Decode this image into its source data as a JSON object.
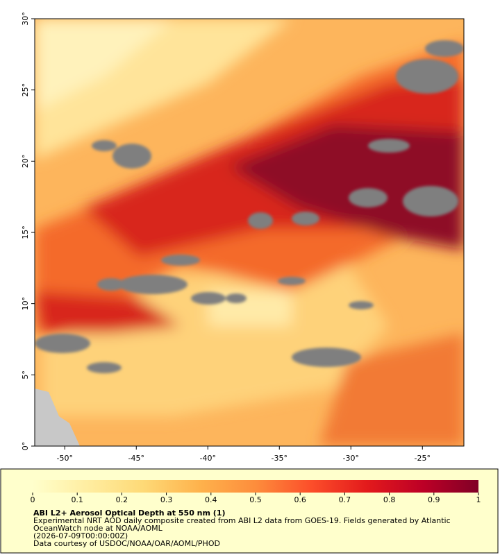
{
  "map": {
    "xlim": [
      -52.1,
      -22.1
    ],
    "ylim": [
      0,
      30
    ],
    "xticks": [
      {
        "value": -50,
        "label": "-50°"
      },
      {
        "value": -45,
        "label": "-45°"
      },
      {
        "value": -40,
        "label": "-40°"
      },
      {
        "value": -35,
        "label": "-35°"
      },
      {
        "value": -30,
        "label": "-30°"
      },
      {
        "value": -25,
        "label": "-25°"
      }
    ],
    "yticks": [
      {
        "value": 0,
        "label": "0°"
      },
      {
        "value": 5,
        "label": "5°"
      },
      {
        "value": 10,
        "label": "10°"
      },
      {
        "value": 15,
        "label": "15°"
      },
      {
        "value": 20,
        "label": "20°"
      },
      {
        "value": 25,
        "label": "25°"
      },
      {
        "value": 30,
        "label": "30°"
      }
    ]
  },
  "colorbar": {
    "colors": [
      "#ffffcc",
      "#ffeda0",
      "#fed976",
      "#feb24c",
      "#fd8d3c",
      "#fc4e2a",
      "#e31a1c",
      "#bd0026",
      "#800026"
    ],
    "clim": [
      0,
      1
    ],
    "ticks": [
      0,
      0.1,
      0.2,
      0.3,
      0.4,
      0.5,
      0.6,
      0.7,
      0.8,
      0.9,
      1
    ]
  },
  "caption": {
    "title": "ABI L2+ Aerosol Optical Depth at 550 nm (1)",
    "lines": [
      "Experimental NRT AOD daily composite created from ABI L2 data from GOES-19. Fields generated by Atlantic",
      "OceanWatch node at NOAA/AOML",
      "(2026-07-09T00:00:00Z)",
      "Data courtesy of USDOC/NOAA/OAR/AOML/PHOD"
    ]
  }
}
